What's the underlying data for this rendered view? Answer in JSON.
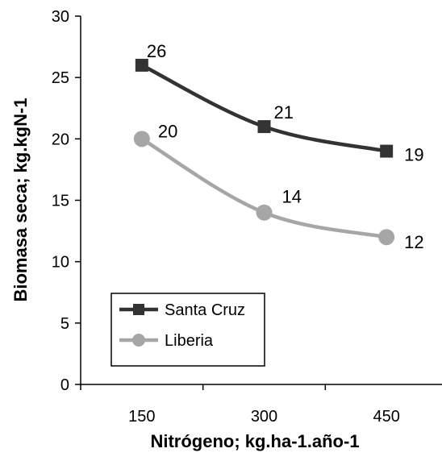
{
  "chart_data": {
    "type": "line",
    "title": "",
    "xlabel": "Nitrógeno; kg.ha-1.año-1",
    "ylabel": "Biomasa seca; kg.kgN-1",
    "categories": [
      "150",
      "300",
      "450"
    ],
    "ylim": [
      0,
      30
    ],
    "yticks": [
      "0",
      "5",
      "10",
      "15",
      "20",
      "25",
      "30"
    ],
    "grid": false,
    "legend_position": "bottom-left",
    "series": [
      {
        "name": "Santa Cruz",
        "values": [
          26,
          21,
          19
        ],
        "labels": [
          "26",
          "21",
          "19"
        ],
        "color": "#333333",
        "marker": "square"
      },
      {
        "name": "Liberia",
        "values": [
          20,
          14,
          12
        ],
        "labels": [
          "20",
          "14",
          "12"
        ],
        "color": "#a6a6a6",
        "marker": "circle"
      }
    ]
  }
}
